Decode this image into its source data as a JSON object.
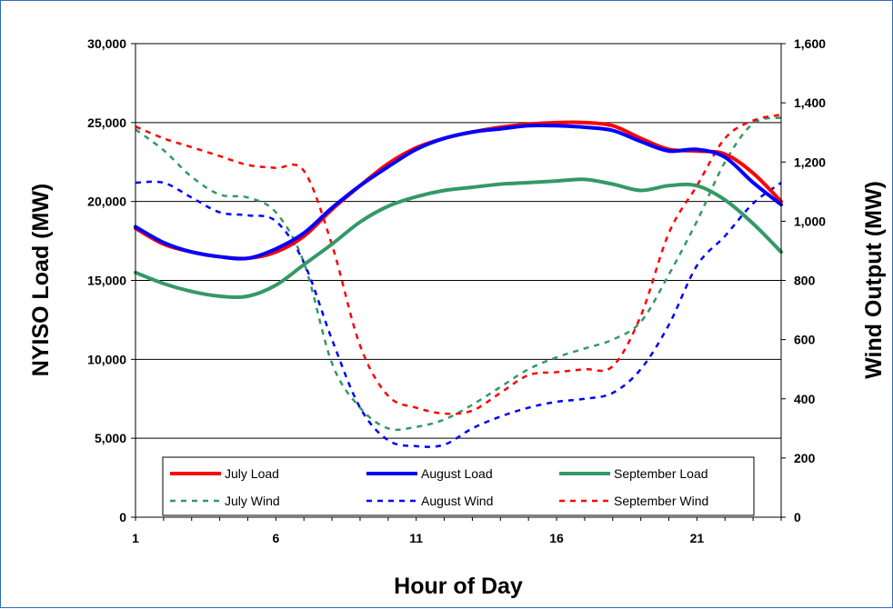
{
  "chart_data": {
    "type": "line",
    "title": "",
    "xlabel": "Hour of Day",
    "ylabel_left": "NYISO Load (MW)",
    "ylabel_right": "Wind Output (MW)",
    "xlim": [
      1,
      24
    ],
    "ylim_left": [
      0,
      30000
    ],
    "ylim_right": [
      0,
      1600
    ],
    "x_ticks": [
      "1",
      "6",
      "11",
      "16",
      "21"
    ],
    "y_ticks_left": [
      "0",
      "5,000",
      "10,000",
      "15,000",
      "20,000",
      "25,000",
      "30,000"
    ],
    "y_ticks_right": [
      "0",
      "200",
      "400",
      "600",
      "800",
      "1,000",
      "1,200",
      "1,400",
      "1,600"
    ],
    "grid": "horizontal major gridlines",
    "legend_position": "bottom-inside",
    "x": [
      1,
      2,
      3,
      4,
      5,
      6,
      7,
      8,
      9,
      10,
      11,
      12,
      13,
      14,
      15,
      16,
      17,
      18,
      19,
      20,
      21,
      22,
      23,
      24
    ],
    "series": [
      {
        "name": "July Load",
        "axis": "left",
        "style": "solid",
        "color": "#ff0000",
        "values": [
          18300,
          17300,
          16800,
          16500,
          16400,
          16800,
          17800,
          19500,
          21000,
          22400,
          23400,
          24000,
          24400,
          24700,
          24900,
          25000,
          25000,
          24800,
          24000,
          23300,
          23200,
          23000,
          21800,
          20000
        ]
      },
      {
        "name": "August Load",
        "axis": "left",
        "style": "solid",
        "color": "#0000ff",
        "values": [
          18400,
          17400,
          16800,
          16500,
          16400,
          17000,
          18000,
          19600,
          21000,
          22200,
          23300,
          24000,
          24400,
          24600,
          24800,
          24800,
          24700,
          24500,
          23800,
          23200,
          23300,
          22800,
          21200,
          19800
        ]
      },
      {
        "name": "September Load",
        "axis": "left",
        "style": "solid",
        "color": "#339966",
        "values": [
          15500,
          14800,
          14300,
          14000,
          14000,
          14700,
          16000,
          17300,
          18700,
          19700,
          20300,
          20700,
          20900,
          21100,
          21200,
          21300,
          21400,
          21100,
          20700,
          21000,
          21000,
          20100,
          18600,
          16800
        ]
      },
      {
        "name": "July Wind",
        "axis": "right",
        "style": "dashed",
        "color": "#339966",
        "values": [
          1310,
          1240,
          1150,
          1090,
          1080,
          1030,
          860,
          520,
          370,
          300,
          305,
          330,
          380,
          440,
          500,
          540,
          570,
          600,
          660,
          820,
          1000,
          1200,
          1330,
          1350
        ]
      },
      {
        "name": "August Wind",
        "axis": "right",
        "style": "dashed",
        "color": "#0000ff",
        "values": [
          1130,
          1130,
          1080,
          1030,
          1020,
          1000,
          860,
          600,
          370,
          260,
          240,
          245,
          300,
          340,
          370,
          390,
          400,
          420,
          500,
          650,
          850,
          950,
          1060,
          1130
        ]
      },
      {
        "name": "September Wind",
        "axis": "right",
        "style": "dashed",
        "color": "#ff0000",
        "values": [
          1320,
          1280,
          1250,
          1220,
          1190,
          1180,
          1170,
          920,
          580,
          410,
          370,
          350,
          360,
          420,
          480,
          490,
          500,
          510,
          680,
          960,
          1120,
          1280,
          1340,
          1360
        ]
      }
    ]
  }
}
